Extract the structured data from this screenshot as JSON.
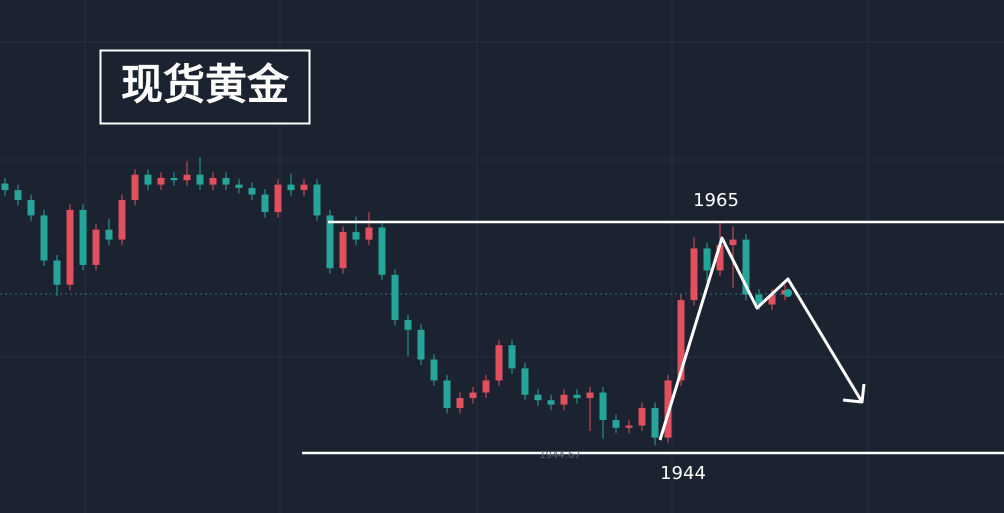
{
  "chart_data": {
    "type": "candlestick",
    "title": "现货黄金",
    "up_color": "#e0505e",
    "down_color": "#26a69a",
    "ylim": [
      1938.55,
      1985.18
    ],
    "levels": [
      1965,
      1944
    ],
    "price_label": 1944.67,
    "ohlc": [
      [
        1968.5,
        1969.0,
        1967.4,
        1967.9
      ],
      [
        1967.9,
        1968.4,
        1966.5,
        1967.0
      ],
      [
        1967.0,
        1967.5,
        1965.1,
        1965.6
      ],
      [
        1965.6,
        1966.1,
        1961.0,
        1961.5
      ],
      [
        1961.5,
        1962.0,
        1958.3,
        1959.3
      ],
      [
        1959.3,
        1966.6,
        1958.8,
        1966.1
      ],
      [
        1966.1,
        1966.6,
        1960.6,
        1961.1
      ],
      [
        1961.1,
        1964.8,
        1960.6,
        1964.3
      ],
      [
        1964.3,
        1965.3,
        1962.9,
        1963.4
      ],
      [
        1963.4,
        1967.5,
        1962.9,
        1967.0
      ],
      [
        1967.0,
        1969.8,
        1966.5,
        1969.3
      ],
      [
        1969.3,
        1969.8,
        1967.9,
        1968.4
      ],
      [
        1968.4,
        1969.5,
        1967.9,
        1969.0
      ],
      [
        1969.0,
        1969.5,
        1968.3,
        1968.8
      ],
      [
        1968.8,
        1970.5,
        1968.3,
        1969.3
      ],
      [
        1969.3,
        1970.9,
        1967.9,
        1968.4
      ],
      [
        1968.4,
        1969.5,
        1967.9,
        1969.0
      ],
      [
        1969.0,
        1969.5,
        1967.9,
        1968.4
      ],
      [
        1968.4,
        1968.9,
        1967.6,
        1968.1
      ],
      [
        1968.1,
        1968.6,
        1967.0,
        1967.5
      ],
      [
        1967.5,
        1968.0,
        1965.4,
        1965.9
      ],
      [
        1965.9,
        1968.9,
        1965.4,
        1968.4
      ],
      [
        1968.4,
        1969.4,
        1967.4,
        1967.9
      ],
      [
        1967.9,
        1968.9,
        1967.4,
        1968.4
      ],
      [
        1968.4,
        1968.9,
        1965.1,
        1965.6
      ],
      [
        1965.6,
        1966.1,
        1960.3,
        1960.8
      ],
      [
        1960.8,
        1964.6,
        1960.3,
        1964.1
      ],
      [
        1964.1,
        1965.5,
        1962.9,
        1963.4
      ],
      [
        1963.4,
        1965.9,
        1962.9,
        1964.5
      ],
      [
        1964.5,
        1965.0,
        1959.7,
        1960.2
      ],
      [
        1960.2,
        1960.7,
        1955.6,
        1956.1
      ],
      [
        1956.1,
        1956.6,
        1952.8,
        1955.2
      ],
      [
        1955.2,
        1955.7,
        1952.0,
        1952.5
      ],
      [
        1952.5,
        1953.0,
        1950.1,
        1950.6
      ],
      [
        1950.6,
        1951.1,
        1947.6,
        1948.1
      ],
      [
        1948.1,
        1949.5,
        1947.6,
        1949.0
      ],
      [
        1949.0,
        1950.0,
        1948.5,
        1949.5
      ],
      [
        1949.5,
        1951.1,
        1949.0,
        1950.6
      ],
      [
        1950.6,
        1954.3,
        1950.1,
        1953.8
      ],
      [
        1953.8,
        1954.3,
        1951.2,
        1951.7
      ],
      [
        1951.7,
        1952.2,
        1948.8,
        1949.3
      ],
      [
        1949.3,
        1949.8,
        1948.3,
        1948.8
      ],
      [
        1948.8,
        1949.3,
        1947.9,
        1948.4
      ],
      [
        1948.4,
        1949.8,
        1947.9,
        1949.3
      ],
      [
        1949.3,
        1949.8,
        1948.5,
        1949.0
      ],
      [
        1949.0,
        1950.0,
        1946.0,
        1949.5
      ],
      [
        1949.5,
        1950.0,
        1945.3,
        1947.0
      ],
      [
        1947.0,
        1947.5,
        1945.8,
        1946.3
      ],
      [
        1946.3,
        1947.0,
        1945.8,
        1946.5
      ],
      [
        1946.5,
        1948.6,
        1946.0,
        1948.1
      ],
      [
        1948.1,
        1948.6,
        1944.7,
        1945.4
      ],
      [
        1945.4,
        1951.1,
        1944.9,
        1950.6
      ],
      [
        1950.6,
        1958.4,
        1950.1,
        1957.9
      ],
      [
        1957.9,
        1963.6,
        1957.4,
        1962.6
      ],
      [
        1962.6,
        1963.1,
        1959.6,
        1960.6
      ],
      [
        1960.6,
        1965.0,
        1960.1,
        1962.9
      ],
      [
        1962.9,
        1964.6,
        1959.0,
        1963.4
      ],
      [
        1963.4,
        1963.9,
        1957.9,
        1958.4
      ],
      [
        1958.4,
        1958.9,
        1957.0,
        1957.5
      ],
      [
        1957.5,
        1958.9,
        1957.0,
        1958.4
      ],
      [
        1958.4,
        1959.3,
        1957.9,
        1958.8
      ]
    ]
  }
}
